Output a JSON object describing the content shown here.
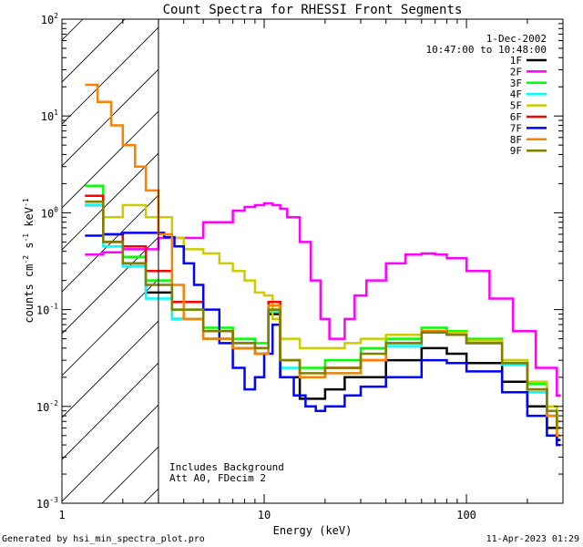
{
  "chart_data": {
    "type": "line",
    "title": "Count Spectra for RHESSI Front Segments",
    "xlabel": "Energy (keV)",
    "ylabel_parts": [
      "counts cm",
      "-2",
      " s",
      "-1",
      " keV",
      "-1"
    ],
    "xscale": "log",
    "yscale": "log",
    "xlim": [
      1,
      300
    ],
    "ylim": [
      0.001,
      100
    ],
    "x_ticks": [
      {
        "value": 1,
        "label": "1"
      },
      {
        "value": 10,
        "label": "10"
      },
      {
        "value": 100,
        "label": "100"
      }
    ],
    "y_ticks": [
      {
        "value": 0.001,
        "base": "10",
        "exp": "-3"
      },
      {
        "value": 0.01,
        "base": "10",
        "exp": "-2"
      },
      {
        "value": 0.1,
        "base": "10",
        "exp": "-1"
      },
      {
        "value": 1,
        "base": "10",
        "exp": "0"
      },
      {
        "value": 10,
        "base": "10",
        "exp": "1"
      },
      {
        "value": 100,
        "base": "10",
        "exp": "2"
      }
    ],
    "date": "1-Dec-2002",
    "time_range": "10:47:00 to 10:48:00",
    "threshold_energy": 3,
    "hatched_region": [
      1,
      3
    ],
    "annotations": [
      "Includes Background",
      "Att A0, FDecim 2"
    ],
    "legend_position": "top-right",
    "series": [
      {
        "name": "1F",
        "color": "#000000",
        "x": [
          1.3,
          1.6,
          2.0,
          2.6,
          3.5,
          5,
          7,
          9,
          10.5,
          12,
          15,
          20,
          25,
          30,
          40,
          60,
          80,
          100,
          150,
          200,
          250,
          280
        ],
        "y": [
          1.2,
          0.5,
          0.3,
          0.15,
          0.08,
          0.05,
          0.04,
          0.035,
          0.09,
          0.02,
          0.012,
          0.015,
          0.02,
          0.02,
          0.03,
          0.04,
          0.035,
          0.028,
          0.018,
          0.01,
          0.006,
          0.0045
        ]
      },
      {
        "name": "2F",
        "color": "#ff00ff",
        "x": [
          1.3,
          1.6,
          2,
          3,
          5,
          7,
          8,
          9,
          10,
          11,
          12,
          13,
          15,
          17,
          19,
          21,
          23,
          25,
          28,
          32,
          40,
          50,
          60,
          70,
          80,
          100,
          130,
          170,
          220,
          280
        ],
        "y": [
          0.37,
          0.39,
          0.42,
          0.55,
          0.8,
          1.05,
          1.15,
          1.2,
          1.25,
          1.2,
          1.1,
          0.9,
          0.5,
          0.2,
          0.08,
          0.05,
          0.05,
          0.08,
          0.14,
          0.2,
          0.3,
          0.37,
          0.38,
          0.37,
          0.34,
          0.25,
          0.13,
          0.06,
          0.025,
          0.013
        ]
      },
      {
        "name": "3F",
        "color": "#00ff00",
        "x": [
          1.3,
          1.6,
          2,
          2.6,
          3.5,
          5,
          7,
          9,
          10.5,
          12,
          15,
          20,
          30,
          40,
          60,
          80,
          100,
          150,
          200,
          250,
          280
        ],
        "y": [
          1.9,
          0.6,
          0.35,
          0.2,
          0.1,
          0.065,
          0.05,
          0.045,
          0.1,
          0.03,
          0.025,
          0.03,
          0.04,
          0.05,
          0.065,
          0.06,
          0.05,
          0.03,
          0.017,
          0.009,
          0.006
        ]
      },
      {
        "name": "4F",
        "color": "#00ffff",
        "x": [
          1.3,
          1.6,
          2,
          2.6,
          3.5,
          5,
          7,
          9,
          10.5,
          12,
          15,
          20,
          30,
          40,
          60,
          80,
          100,
          150,
          200,
          250,
          280
        ],
        "y": [
          1.2,
          0.45,
          0.28,
          0.13,
          0.08,
          0.05,
          0.04,
          0.035,
          0.095,
          0.025,
          0.02,
          0.022,
          0.03,
          0.042,
          0.058,
          0.055,
          0.045,
          0.027,
          0.014,
          0.008,
          0.005
        ]
      },
      {
        "name": "5F",
        "color": "#cccc00",
        "x": [
          1.3,
          1.6,
          2,
          2.6,
          3.5,
          4,
          5,
          6,
          7,
          8,
          9,
          10,
          11,
          12,
          15,
          20,
          25,
          30,
          40,
          60,
          80,
          100,
          150,
          200,
          250,
          280
        ],
        "y": [
          1.5,
          0.9,
          1.2,
          0.9,
          0.55,
          0.42,
          0.38,
          0.3,
          0.25,
          0.2,
          0.15,
          0.14,
          0.08,
          0.05,
          0.04,
          0.04,
          0.045,
          0.05,
          0.055,
          0.06,
          0.058,
          0.048,
          0.03,
          0.018,
          0.01,
          0.007
        ]
      },
      {
        "name": "6F",
        "color": "#ff0000",
        "x": [
          1.3,
          1.6,
          2,
          2.6,
          3.5,
          5,
          7,
          9,
          10.5,
          12,
          15,
          20,
          30,
          40,
          60,
          80,
          100,
          150,
          200,
          250,
          280
        ],
        "y": [
          1.5,
          0.6,
          0.45,
          0.25,
          0.12,
          0.06,
          0.045,
          0.04,
          0.12,
          0.03,
          0.02,
          0.025,
          0.03,
          0.045,
          0.06,
          0.055,
          0.045,
          0.028,
          0.015,
          0.008,
          0.006
        ]
      },
      {
        "name": "7F",
        "color": "#0000ff",
        "x": [
          1.3,
          1.6,
          2,
          2.6,
          3.2,
          3.6,
          4,
          4.5,
          5,
          6,
          7,
          8,
          9,
          10,
          11,
          12,
          14,
          16,
          18,
          20,
          25,
          30,
          40,
          60,
          80,
          100,
          150,
          200,
          250,
          280
        ],
        "y": [
          0.58,
          0.6,
          0.62,
          0.62,
          0.56,
          0.45,
          0.3,
          0.18,
          0.1,
          0.045,
          0.025,
          0.015,
          0.02,
          0.035,
          0.07,
          0.02,
          0.013,
          0.01,
          0.009,
          0.01,
          0.013,
          0.016,
          0.02,
          0.03,
          0.028,
          0.023,
          0.014,
          0.008,
          0.005,
          0.004
        ]
      },
      {
        "name": "8F",
        "color": "#ff8000",
        "x": [
          1.3,
          1.5,
          1.75,
          2.0,
          2.3,
          2.6,
          3.0,
          3.5,
          4,
          5,
          7,
          9,
          10.5,
          12,
          15,
          20,
          30,
          40,
          60,
          80,
          100,
          150,
          200,
          250,
          280
        ],
        "y": [
          21,
          14,
          8,
          5,
          3,
          1.7,
          0.6,
          0.18,
          0.08,
          0.05,
          0.04,
          0.035,
          0.11,
          0.03,
          0.02,
          0.022,
          0.03,
          0.045,
          0.06,
          0.055,
          0.045,
          0.028,
          0.015,
          0.008,
          0.005
        ]
      },
      {
        "name": "9F",
        "color": "#808000",
        "x": [
          1.3,
          1.6,
          2,
          2.6,
          3.5,
          5,
          7,
          9,
          10.5,
          12,
          15,
          20,
          30,
          40,
          60,
          80,
          100,
          150,
          200,
          250,
          280
        ],
        "y": [
          1.3,
          0.5,
          0.3,
          0.18,
          0.1,
          0.06,
          0.045,
          0.04,
          0.1,
          0.03,
          0.022,
          0.025,
          0.035,
          0.045,
          0.058,
          0.055,
          0.045,
          0.028,
          0.015,
          0.009,
          0.006
        ]
      }
    ]
  },
  "footer": {
    "left": "Generated by hsi_min_spectra_plot.pro",
    "right": "11-Apr-2023 01:29"
  }
}
